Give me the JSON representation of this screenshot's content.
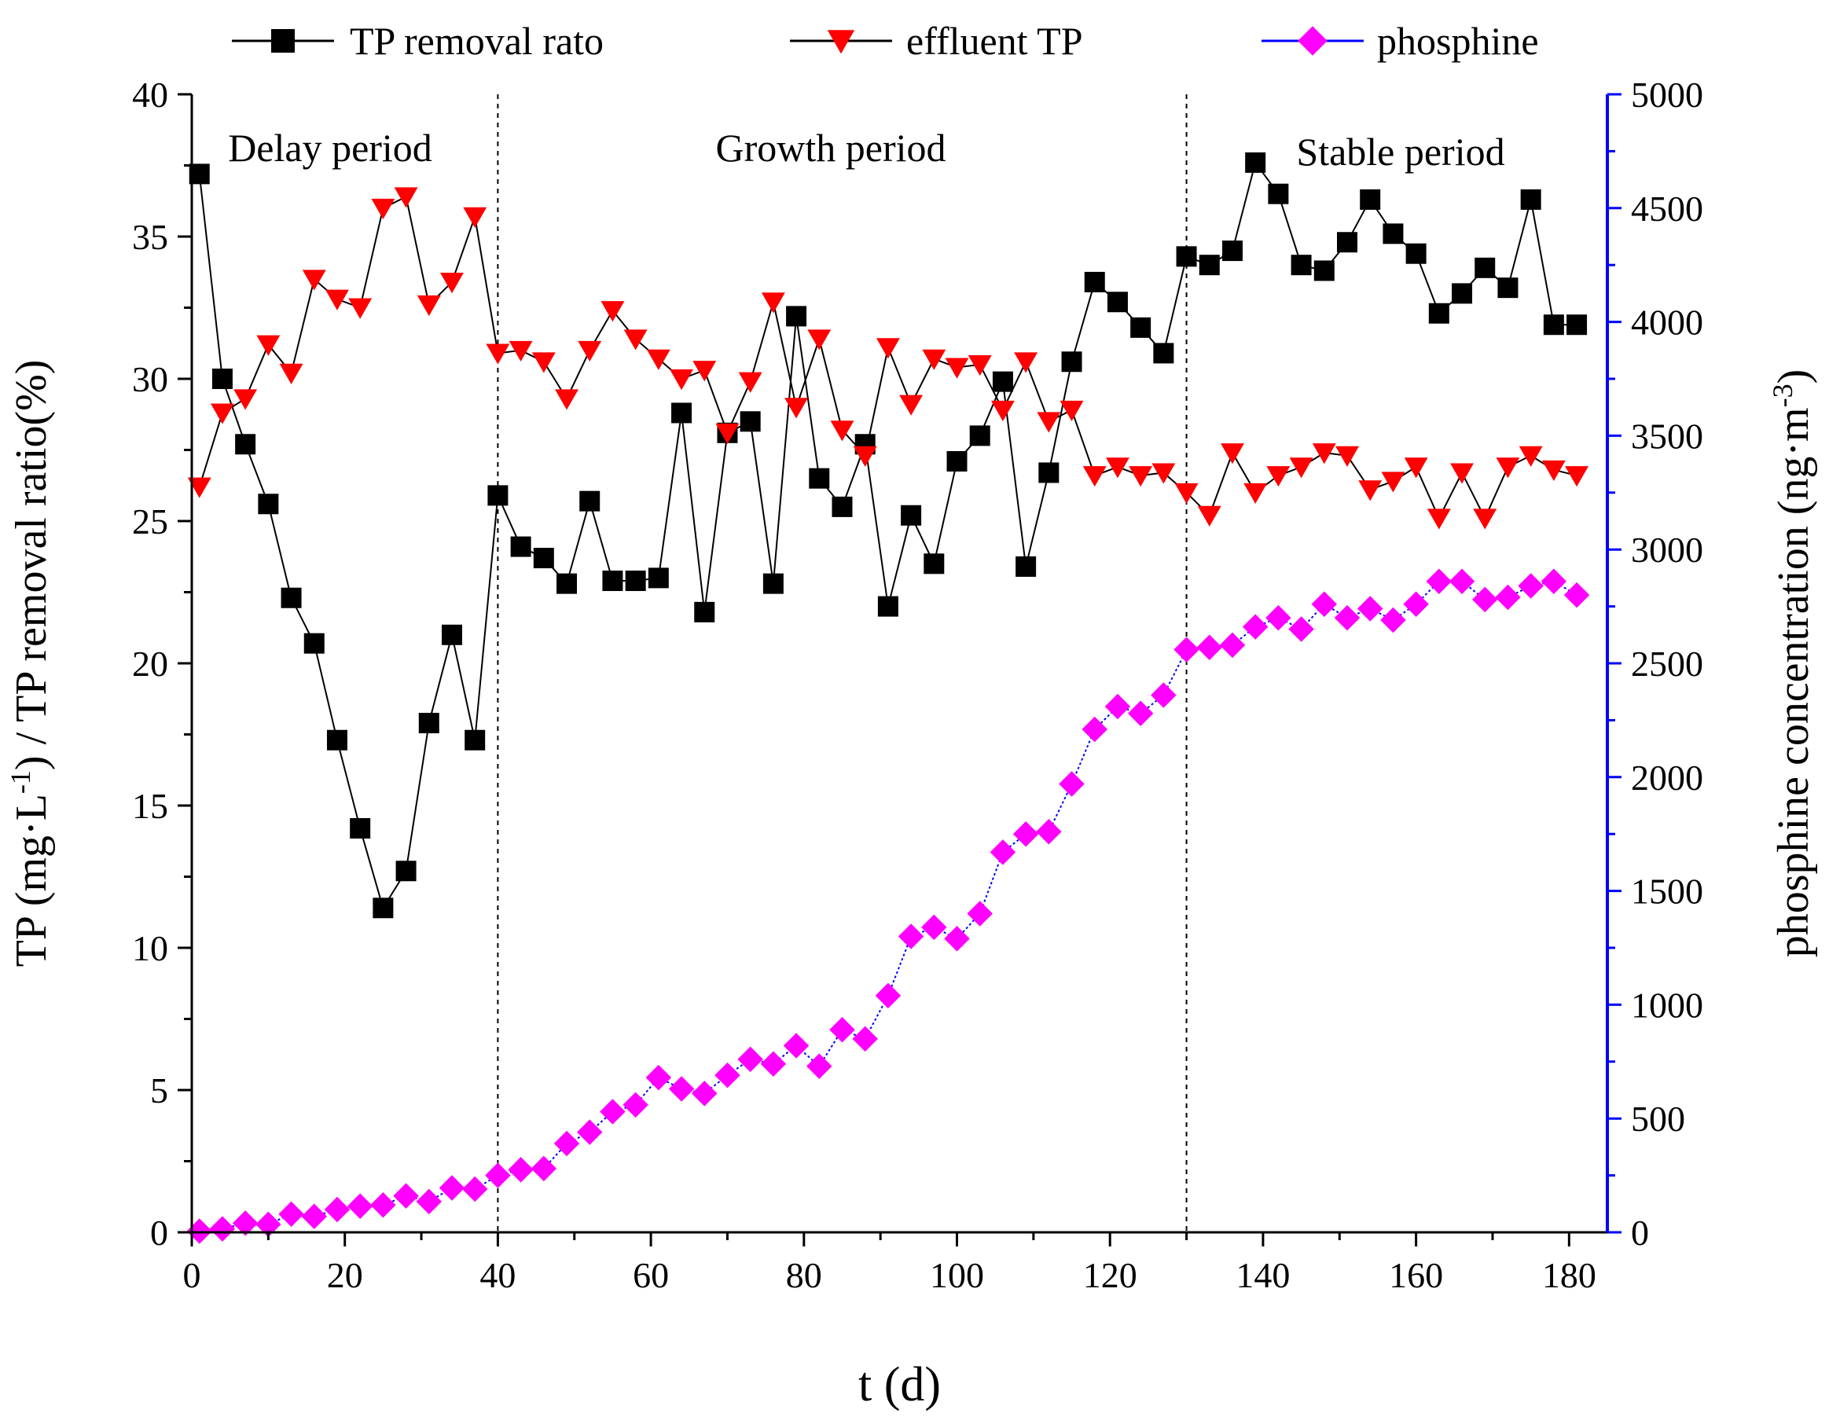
{
  "chart_data": {
    "type": "line",
    "xlabel": "t (d)",
    "ylabel_left": "TP (mg·L-1) / TP removal ratio(%)",
    "ylabel_right": "phosphine concentration (ng·m-3)",
    "xlim": [
      0,
      185
    ],
    "ylim_left": [
      0,
      40
    ],
    "ylim_right": [
      0,
      5000
    ],
    "x_ticks": [
      0,
      20,
      40,
      60,
      80,
      100,
      120,
      140,
      160,
      180
    ],
    "y_left_ticks": [
      0,
      5,
      10,
      15,
      20,
      25,
      30,
      35,
      40
    ],
    "y_right_ticks": [
      0,
      500,
      1000,
      1500,
      2000,
      2500,
      3000,
      3500,
      4000,
      4500,
      5000
    ],
    "periods": [
      {
        "label": "Delay period",
        "x_start": 0,
        "x_end": 40
      },
      {
        "label": "Growth period",
        "x_start": 40,
        "x_end": 130
      },
      {
        "label": "Stable period",
        "x_start": 130,
        "x_end": 185
      }
    ],
    "boundaries": [
      40,
      130
    ],
    "legend": [
      {
        "label": "TP removal rato",
        "color": "#000000",
        "marker": "square"
      },
      {
        "label": "effluent TP",
        "color": "#ff0000",
        "marker": "triangle-down"
      },
      {
        "label": "phosphine",
        "color": "#ff00ff",
        "marker": "diamond"
      }
    ],
    "series": [
      {
        "name": "TP removal rato",
        "axis": "left",
        "color": "#000000",
        "line_color": "#000000",
        "marker": "square",
        "x": [
          1,
          4,
          7,
          10,
          13,
          16,
          19,
          22,
          25,
          28,
          31,
          34,
          37,
          40,
          43,
          46,
          49,
          52,
          55,
          58,
          61,
          64,
          67,
          70,
          73,
          76,
          79,
          82,
          85,
          88,
          91,
          94,
          97,
          100,
          103,
          106,
          109,
          112,
          115,
          118,
          121,
          124,
          127,
          130,
          133,
          136,
          139,
          142,
          145,
          148,
          151,
          154,
          157,
          160,
          163,
          166,
          169,
          172,
          175,
          178,
          181
        ],
        "values": [
          37.2,
          30.0,
          27.7,
          25.6,
          22.3,
          20.7,
          17.3,
          14.2,
          11.4,
          12.7,
          17.9,
          21.0,
          17.3,
          25.9,
          24.1,
          23.7,
          22.8,
          25.7,
          22.9,
          22.9,
          23.0,
          28.8,
          21.8,
          28.1,
          28.5,
          22.8,
          32.2,
          26.5,
          25.5,
          27.7,
          22.0,
          25.2,
          23.5,
          27.1,
          28.0,
          29.9,
          23.4,
          26.7,
          30.6,
          33.4,
          32.7,
          31.8,
          30.9,
          34.3,
          34.0,
          34.5,
          37.6,
          36.5,
          34.0,
          33.8,
          34.8,
          36.3,
          35.1,
          34.4,
          32.3,
          33.0,
          33.9,
          33.2,
          36.3,
          31.9,
          31.9
        ]
      },
      {
        "name": "effluent TP",
        "axis": "left",
        "color": "#ff0000",
        "line_color": "#000000",
        "marker": "triangle-down",
        "x": [
          1,
          4,
          7,
          10,
          13,
          16,
          19,
          22,
          25,
          28,
          31,
          34,
          37,
          40,
          43,
          46,
          49,
          52,
          55,
          58,
          61,
          64,
          67,
          70,
          73,
          76,
          79,
          82,
          85,
          88,
          91,
          94,
          97,
          100,
          103,
          106,
          109,
          112,
          115,
          118,
          121,
          124,
          127,
          130,
          133,
          136,
          139,
          142,
          145,
          148,
          151,
          154,
          157,
          160,
          163,
          166,
          169,
          172,
          175,
          178,
          181
        ],
        "values": [
          26.2,
          28.8,
          29.3,
          31.2,
          30.2,
          33.5,
          32.8,
          32.5,
          36.0,
          36.4,
          32.6,
          33.4,
          35.7,
          30.9,
          31.0,
          30.6,
          29.3,
          31.0,
          32.4,
          31.4,
          30.7,
          30.0,
          30.3,
          28.1,
          29.9,
          32.7,
          29.0,
          31.4,
          28.2,
          27.3,
          31.1,
          29.1,
          30.7,
          30.4,
          30.5,
          28.9,
          30.6,
          28.5,
          28.9,
          26.6,
          26.9,
          26.6,
          26.7,
          26.0,
          25.2,
          27.4,
          26.0,
          26.6,
          26.9,
          27.4,
          27.3,
          26.1,
          26.4,
          26.9,
          25.1,
          26.7,
          25.1,
          26.9,
          27.3,
          26.8,
          26.6
        ]
      },
      {
        "name": "phosphine",
        "axis": "right",
        "color": "#ff00ff",
        "line_color": "#0000ff",
        "marker": "diamond",
        "x": [
          1,
          4,
          7,
          10,
          13,
          16,
          19,
          22,
          25,
          28,
          31,
          34,
          37,
          40,
          43,
          46,
          49,
          52,
          55,
          58,
          61,
          64,
          67,
          70,
          73,
          76,
          79,
          82,
          85,
          88,
          91,
          94,
          97,
          100,
          103,
          106,
          109,
          112,
          115,
          118,
          121,
          124,
          127,
          130,
          133,
          136,
          139,
          142,
          145,
          148,
          151,
          154,
          157,
          160,
          163,
          166,
          169,
          172,
          175,
          178,
          181
        ],
        "values": [
          5,
          15,
          40,
          35,
          80,
          70,
          100,
          115,
          120,
          160,
          135,
          195,
          190,
          250,
          275,
          280,
          390,
          440,
          530,
          560,
          680,
          630,
          610,
          690,
          760,
          740,
          820,
          730,
          890,
          850,
          1040,
          1300,
          1340,
          1290,
          1400,
          1670,
          1750,
          1760,
          1970,
          2210,
          2310,
          2280,
          2360,
          2560,
          2570,
          2580,
          2660,
          2700,
          2650,
          2760,
          2700,
          2740,
          2690,
          2760,
          2860,
          2860,
          2780,
          2790,
          2840,
          2860,
          2800
        ]
      }
    ]
  }
}
